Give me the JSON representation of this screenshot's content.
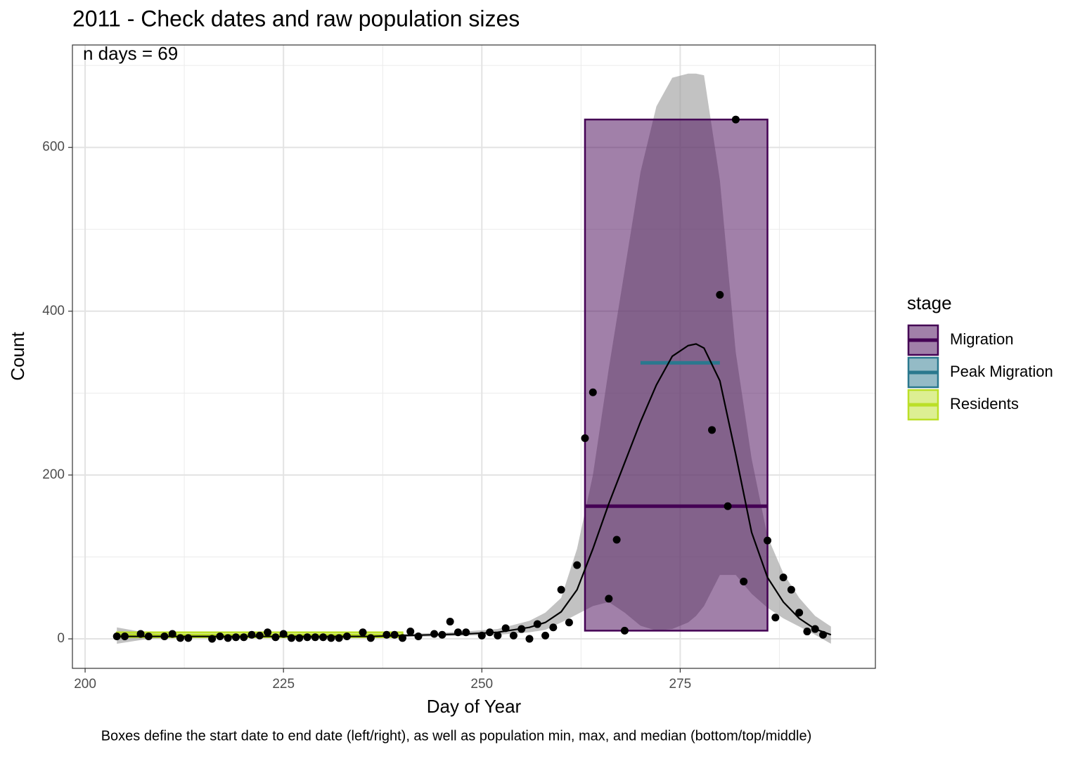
{
  "chart_data": {
    "type": "scatter",
    "title": "2011 - Check dates and raw population sizes",
    "annotation": "n days = 69",
    "x_label": "Day of Year",
    "y_label": "Count",
    "caption": "Boxes define the start date to end date (left/right), as well as population min, max, and median (bottom/top/middle)",
    "xlim": [
      198.4,
      299.6
    ],
    "ylim": [
      -36,
      725
    ],
    "xticks": [
      200,
      225,
      250,
      275
    ],
    "yticks": [
      0,
      200,
      400,
      600
    ],
    "minor_xticks": [
      212.5,
      237.5,
      262.5,
      287.5
    ],
    "minor_yticks": [
      100,
      300,
      500,
      700
    ],
    "grid": true,
    "point_color": "#000000",
    "x": [
      204,
      205,
      207,
      208,
      210,
      211,
      212,
      213,
      216,
      217,
      218,
      219,
      220,
      221,
      222,
      223,
      224,
      225,
      226,
      227,
      228,
      229,
      230,
      231,
      232,
      233,
      235,
      236,
      238,
      239,
      240,
      241,
      242,
      244,
      245,
      246,
      247,
      248,
      250,
      251,
      252,
      253,
      254,
      255,
      256,
      257,
      258,
      259,
      260,
      261,
      262,
      263,
      264,
      266,
      267,
      268,
      279,
      280,
      281,
      282,
      283,
      286,
      287,
      288,
      289,
      290,
      291,
      292,
      293
    ],
    "values": [
      3,
      3,
      6,
      3,
      3,
      6,
      1,
      1,
      0,
      3,
      1,
      2,
      2,
      5,
      4,
      8,
      2,
      6,
      1,
      1,
      2,
      2,
      2,
      1,
      1,
      3,
      8,
      1,
      5,
      5,
      1,
      9,
      3,
      6,
      5,
      21,
      8,
      8,
      4,
      8,
      4,
      13,
      4,
      12,
      0,
      18,
      4,
      14,
      60,
      20,
      90,
      245,
      301,
      49,
      121,
      10,
      255,
      420,
      162,
      634,
      70,
      120,
      26,
      75,
      60,
      32,
      9,
      12,
      5
    ],
    "smooth": {
      "color": "#000000",
      "fill": "#999999",
      "x": [
        204,
        208,
        212,
        216,
        220,
        224,
        228,
        232,
        236,
        240,
        244,
        248,
        252,
        256,
        258,
        260,
        262,
        264,
        266,
        268,
        270,
        272,
        274,
        276,
        277,
        278,
        280,
        282,
        284,
        286,
        288,
        290,
        292,
        294
      ],
      "values": [
        3,
        3,
        3,
        3,
        3,
        3,
        3,
        3,
        3,
        4,
        5,
        6,
        8,
        14,
        20,
        33,
        60,
        110,
        165,
        215,
        265,
        310,
        345,
        358,
        360,
        355,
        315,
        225,
        130,
        75,
        45,
        25,
        12,
        5
      ],
      "lower": [
        -6,
        0,
        1,
        1,
        1,
        1,
        1,
        1,
        1,
        2,
        3,
        4,
        5,
        8,
        11,
        20,
        30,
        40,
        45,
        32,
        16,
        10,
        12,
        20,
        28,
        40,
        78,
        78,
        55,
        38,
        25,
        15,
        5,
        -6
      ],
      "upper": [
        14,
        7,
        5,
        5,
        5,
        5,
        5,
        5,
        5,
        6,
        7,
        9,
        12,
        22,
        32,
        50,
        110,
        200,
        330,
        450,
        570,
        650,
        685,
        690,
        690,
        688,
        560,
        350,
        220,
        125,
        80,
        50,
        28,
        15
      ]
    },
    "legend_title": "stage",
    "boxes": [
      {
        "name": "Migration",
        "color": "#440154",
        "start": 263,
        "end": 286,
        "min": 10,
        "max": 634,
        "median": 162
      },
      {
        "name": "Peak Migration",
        "color": "#2A788E",
        "start": 270,
        "end": 280,
        "min": 337,
        "max": 337,
        "median": 337
      },
      {
        "name": "Residents",
        "color": "#BBDF27",
        "start": 204,
        "end": 240,
        "min": 2,
        "max": 8,
        "median": 4
      }
    ]
  }
}
